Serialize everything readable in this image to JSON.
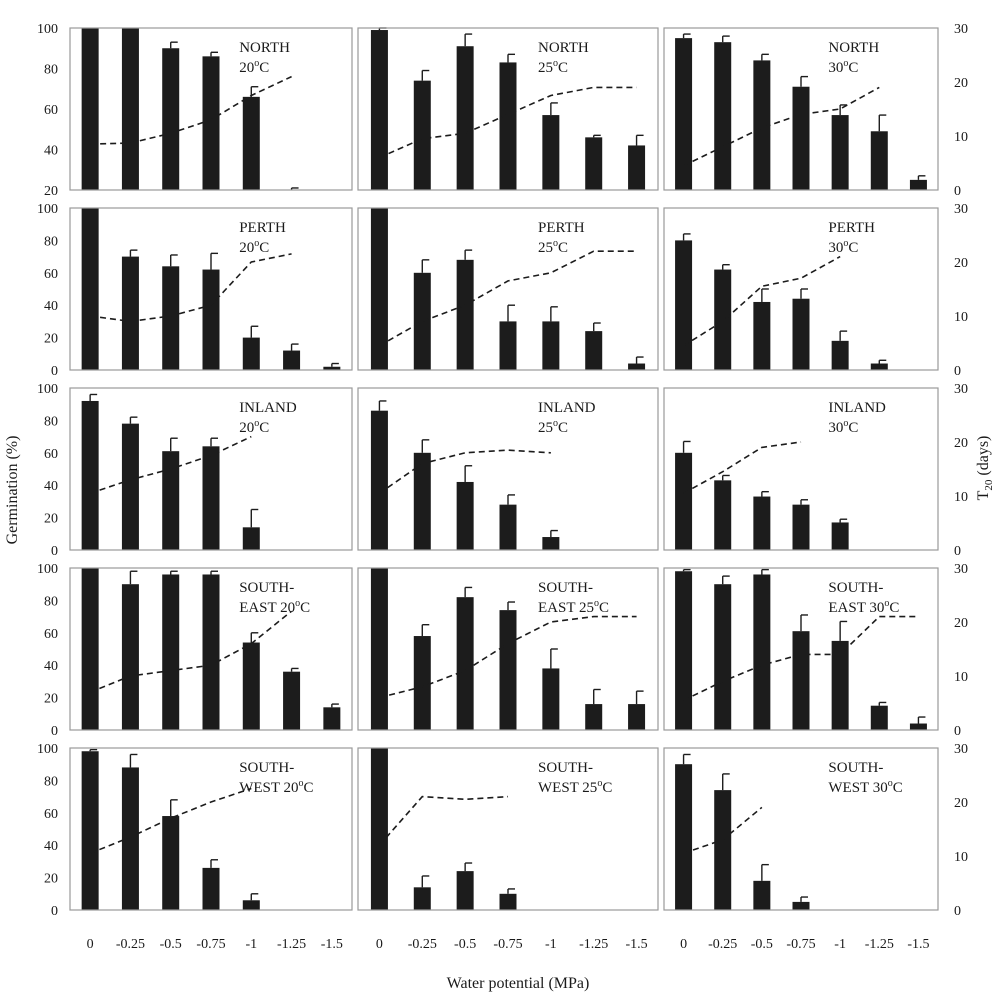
{
  "chart_data": {
    "type": "bar",
    "xlabel": "Water potential (MPa)",
    "ylabel_left": "Germination (%)",
    "ylabel_right": {
      "main": "T",
      "sub": "20",
      "tail": " (days)"
    },
    "x_tick_labels": [
      "0",
      "-0.25",
      "-0.5",
      "-0.75",
      "-1",
      "-1.25",
      "-1.5"
    ],
    "x": [
      0,
      -0.25,
      -0.5,
      -0.75,
      -1,
      -1.25,
      -1.5
    ],
    "left_axis": {
      "ylim": [
        0,
        100
      ],
      "ticks": [
        "0",
        "20",
        "40",
        "60",
        "80",
        "100"
      ]
    },
    "right_axis": {
      "ylim": [
        0,
        30
      ],
      "ticks": [
        "0",
        "10",
        "20",
        "30"
      ]
    },
    "rows": [
      {
        "site": "NORTH",
        "left_ylim": [
          20,
          100
        ],
        "left_ticks": [
          "20",
          "40",
          "60",
          "80",
          "100"
        ],
        "panels": [
          {
            "label1": "NORTH",
            "label2": "20",
            "sup": "o",
            "unit": "C",
            "germination": [
              100,
              100,
              90,
              86,
              66,
              20,
              20
            ],
            "error": [
              0,
              0,
              3,
              2,
              5,
              1,
              0
            ],
            "t20": [
              8.5,
              8.7,
              10.5,
              13,
              17.5,
              21,
              null
            ]
          },
          {
            "label1": "NORTH",
            "label2": "25",
            "sup": "o",
            "unit": "C",
            "germination": [
              99,
              74,
              91,
              83,
              57,
              46,
              42
            ],
            "error": [
              1,
              5,
              6,
              4,
              6,
              1,
              5
            ],
            "t20": [
              6,
              9.5,
              10.5,
              14,
              17.5,
              19,
              19
            ]
          },
          {
            "label1": "NORTH",
            "label2": "30",
            "sup": "o",
            "unit": "C",
            "germination": [
              95,
              93,
              84,
              71,
              57,
              49,
              25
            ],
            "error": [
              2,
              3,
              3,
              5,
              5,
              8,
              2
            ],
            "t20": [
              4.5,
              8,
              11.5,
              14,
              15,
              19,
              null
            ]
          }
        ]
      },
      {
        "site": "PERTH",
        "left_ylim": [
          0,
          100
        ],
        "left_ticks": [
          "0",
          "20",
          "40",
          "60",
          "80",
          "100"
        ],
        "panels": [
          {
            "label1": "PERTH",
            "label2": "20",
            "sup": "o",
            "unit": "C",
            "germination": [
              100,
              70,
              64,
              62,
              20,
              12,
              2
            ],
            "error": [
              0,
              4,
              7,
              10,
              7,
              4,
              2
            ],
            "t20": [
              10,
              9,
              10,
              12,
              20,
              21.5,
              null
            ]
          },
          {
            "label1": "PERTH",
            "label2": "25",
            "sup": "o",
            "unit": "C",
            "germination": [
              100,
              60,
              68,
              30,
              30,
              24,
              4
            ],
            "error": [
              0,
              8,
              6,
              10,
              9,
              5,
              4
            ],
            "t20": [
              4.5,
              9,
              12,
              16.5,
              18,
              22,
              22
            ]
          },
          {
            "label1": "PERTH",
            "label2": "30",
            "sup": "o",
            "unit": "C",
            "germination": [
              80,
              62,
              42,
              44,
              18,
              4,
              0
            ],
            "error": [
              4,
              3,
              8,
              6,
              6,
              2,
              0
            ],
            "t20": [
              4.5,
              9,
              15.5,
              17,
              21,
              null,
              null
            ]
          }
        ]
      },
      {
        "site": "INLAND",
        "left_ylim": [
          0,
          100
        ],
        "left_ticks": [
          "0",
          "20",
          "40",
          "60",
          "80",
          "100"
        ],
        "panels": [
          {
            "label1": "INLAND",
            "label2": "20",
            "sup": "o",
            "unit": "C",
            "germination": [
              92,
              78,
              61,
              64,
              14,
              0,
              0
            ],
            "error": [
              4,
              4,
              8,
              5,
              11,
              0,
              0
            ],
            "t20": [
              10.5,
              13,
              15,
              17.5,
              21,
              null,
              null
            ]
          },
          {
            "label1": "INLAND",
            "label2": "25",
            "sup": "o",
            "unit": "C",
            "germination": [
              86,
              60,
              42,
              28,
              8,
              0,
              0
            ],
            "error": [
              6,
              8,
              10,
              6,
              4,
              0,
              0
            ],
            "t20": [
              10.5,
              16,
              18,
              18.5,
              18,
              null,
              null
            ]
          },
          {
            "label1": "INLAND",
            "label2": "30",
            "sup": "o",
            "unit": "C",
            "germination": [
              60,
              43,
              33,
              28,
              17,
              0,
              0
            ],
            "error": [
              7,
              3,
              3,
              3,
              2,
              0,
              0
            ],
            "t20": [
              10.5,
              14.5,
              19,
              20,
              null,
              null,
              null
            ]
          }
        ]
      },
      {
        "site": "SOUTH-EAST",
        "left_ylim": [
          0,
          100
        ],
        "left_ticks": [
          "0",
          "20",
          "40",
          "60",
          "80",
          "100"
        ],
        "panels": [
          {
            "label1": "SOUTH-",
            "label2": "EAST 20",
            "sup": "o",
            "unit": "C",
            "germination": [
              100,
              90,
              96,
              96,
              54,
              36,
              14
            ],
            "error": [
              0,
              8,
              2,
              2,
              6,
              2,
              2
            ],
            "t20": [
              7,
              10,
              11,
              12,
              16,
              22,
              null
            ]
          },
          {
            "label1": "SOUTH-",
            "label2": "EAST  25",
            "sup": "o",
            "unit": "C",
            "germination": [
              100,
              58,
              82,
              74,
              38,
              16,
              16
            ],
            "error": [
              0,
              7,
              6,
              5,
              12,
              9,
              8
            ],
            "t20": [
              6,
              8,
              11,
              16,
              20,
              21,
              21
            ]
          },
          {
            "label1": "SOUTH-",
            "label2": "EAST 30",
            "sup": "o",
            "unit": "C",
            "germination": [
              98,
              90,
              96,
              61,
              55,
              15,
              4
            ],
            "error": [
              1,
              5,
              3,
              10,
              12,
              2,
              4
            ],
            "t20": [
              5.5,
              9,
              12,
              14,
              14,
              21,
              21
            ]
          }
        ]
      },
      {
        "site": "SOUTH-WEST",
        "left_ylim": [
          0,
          100
        ],
        "left_ticks": [
          "0",
          "20",
          "40",
          "60",
          "80",
          "100"
        ],
        "panels": [
          {
            "label1": "SOUTH-",
            "label2": "WEST 20",
            "sup": "o",
            "unit": "C",
            "germination": [
              98,
              88,
              58,
              26,
              6,
              0,
              0
            ],
            "error": [
              1,
              8,
              10,
              5,
              4,
              0,
              0
            ],
            "t20": [
              10.5,
              13.5,
              17,
              20,
              22.5,
              null,
              null
            ]
          },
          {
            "label1": "SOUTH-",
            "label2": "WEST 25",
            "sup": "o",
            "unit": "C",
            "germination": [
              100,
              14,
              24,
              10,
              0,
              0,
              0
            ],
            "error": [
              0,
              7,
              5,
              3,
              0,
              0,
              0
            ],
            "t20": [
              12,
              21,
              20.5,
              21,
              null,
              null,
              null
            ]
          },
          {
            "label1": "SOUTH-",
            "label2": "WEST 30",
            "sup": "o",
            "unit": "C",
            "germination": [
              90,
              74,
              18,
              5,
              0,
              0,
              0
            ],
            "error": [
              6,
              10,
              10,
              3,
              0,
              0,
              0
            ],
            "t20": [
              10.5,
              13,
              19,
              null,
              null,
              null,
              null
            ]
          }
        ]
      }
    ]
  }
}
